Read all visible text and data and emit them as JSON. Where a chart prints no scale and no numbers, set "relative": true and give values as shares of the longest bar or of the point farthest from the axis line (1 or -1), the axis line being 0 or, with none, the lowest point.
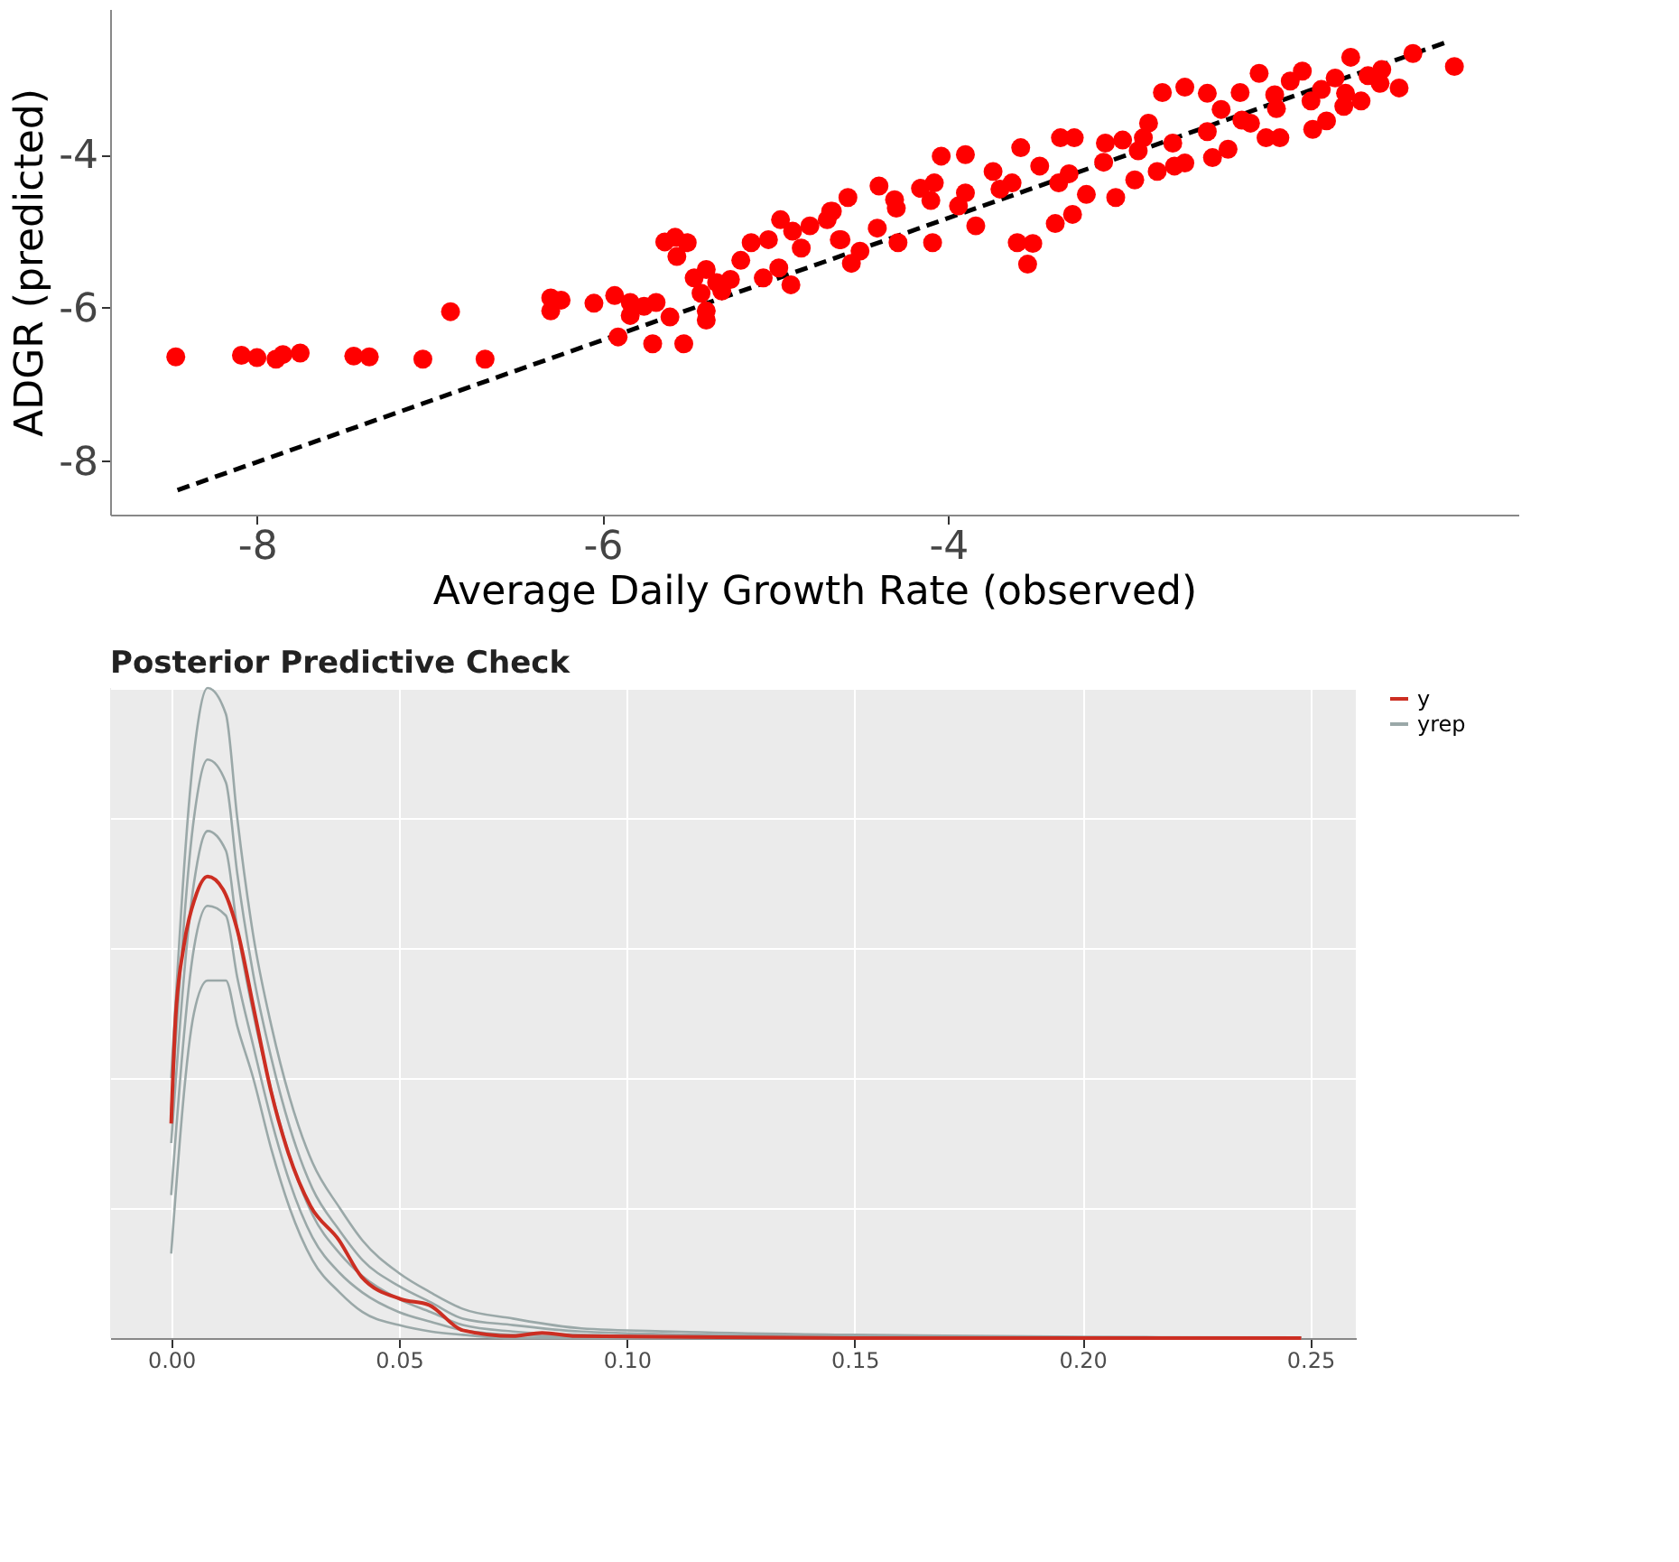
{
  "chart_data": [
    {
      "type": "scatter",
      "xlabel": "Average Daily Growth Rate (observed)",
      "ylabel": "ADGR (predicted)",
      "xlim": [
        -8.85,
        -0.7
      ],
      "ylim": [
        -8.7,
        -2.1
      ],
      "xticks": [
        -8,
        -6,
        -4
      ],
      "yticks": [
        -8,
        -6,
        -4
      ],
      "grid": false,
      "legend": false,
      "marker": "circle",
      "series": [
        {
          "color": "#ff0000",
          "x": [
            -8.47,
            -8.09,
            -8.0,
            -7.89,
            -7.85,
            -7.75,
            -7.44,
            -7.35,
            -7.04,
            -6.88,
            -6.68,
            -6.3,
            -6.24,
            -6.3,
            -6.05,
            -5.93,
            -5.84,
            -5.84,
            -5.76,
            -5.69,
            -5.61,
            -5.91,
            -5.71,
            -5.53,
            -5.64,
            -5.58,
            -5.51,
            -5.57,
            -5.47,
            -5.4,
            -5.34,
            -5.26,
            -5.43,
            -5.31,
            -5.4,
            -5.4,
            -5.2,
            -5.14,
            -5.04,
            -4.97,
            -5.07,
            -4.98,
            -4.91,
            -4.85,
            -4.8,
            -4.67,
            -4.63,
            -4.58,
            -4.68,
            -4.56,
            -4.62,
            -4.51,
            -4.4,
            -4.31,
            -4.41,
            -4.29,
            -4.16,
            -4.08,
            -4.09,
            -4.04,
            -3.9,
            -3.94,
            -3.84,
            -3.74,
            -3.63,
            -3.58,
            -3.6,
            -3.51,
            -3.54,
            -3.47,
            -3.38,
            -3.28,
            -3.35,
            -3.27,
            -3.36,
            -3.2,
            -3.09,
            -2.99,
            -3.03,
            -2.92,
            -2.87,
            -2.84,
            -2.79,
            -2.76,
            -2.63,
            -2.69,
            -2.63,
            -2.5,
            -2.47,
            -2.38,
            -2.42,
            -2.31,
            -2.25,
            -2.2,
            -2.16,
            -2.08,
            -2.11,
            -2.02,
            -1.95,
            -1.89,
            -1.84,
            -1.81,
            -1.76,
            -1.67,
            -1.71,
            -1.61,
            -1.57,
            -1.49,
            -1.5,
            -1.39,
            -1.31,
            -1.07,
            -4.3,
            -4.1,
            -3.9,
            -3.7,
            -3.3,
            -3.1,
            -2.9,
            -2.7,
            -2.5,
            -2.3,
            -2.1,
            -1.9,
            -1.7,
            -4.7,
            -4.9
          ],
          "values": [
            -6.64,
            -6.62,
            -6.65,
            -6.67,
            -6.61,
            -6.59,
            -6.63,
            -6.64,
            -6.67,
            -6.05,
            -6.67,
            -5.87,
            -5.9,
            -6.04,
            -5.94,
            -5.84,
            -5.93,
            -6.1,
            -5.98,
            -5.93,
            -6.12,
            -6.38,
            -6.47,
            -6.47,
            -5.14,
            -5.08,
            -5.15,
            -5.33,
            -5.61,
            -5.5,
            -5.67,
            -5.63,
            -5.81,
            -5.78,
            -6.04,
            -6.16,
            -5.38,
            -5.15,
            -5.11,
            -4.85,
            -5.61,
            -5.48,
            -5.7,
            -5.22,
            -4.93,
            -4.74,
            -5.11,
            -4.56,
            -4.74,
            -5.42,
            -5.11,
            -5.26,
            -4.41,
            -4.59,
            -4.96,
            -5.15,
            -4.44,
            -4.37,
            -5.15,
            -4.02,
            -4.0,
            -4.67,
            -4.93,
            -4.22,
            -4.37,
            -3.91,
            -5.15,
            -5.16,
            -5.43,
            -4.15,
            -4.9,
            -4.78,
            -3.78,
            -3.78,
            -4.37,
            -4.52,
            -3.85,
            -3.81,
            -4.56,
            -4.33,
            -3.78,
            -3.59,
            -4.22,
            -3.19,
            -3.12,
            -4.15,
            -4.11,
            -3.2,
            -4.04,
            -3.93,
            -3.41,
            -3.19,
            -3.59,
            -2.94,
            -3.78,
            -3.78,
            -3.22,
            -3.04,
            -2.91,
            -3.67,
            -3.15,
            -3.56,
            -3.0,
            -2.73,
            -3.37,
            -3.3,
            -2.97,
            -2.89,
            -3.07,
            -3.13,
            -2.68,
            -2.85,
            -4.7,
            -4.6,
            -4.5,
            -4.45,
            -4.25,
            -4.1,
            -3.95,
            -3.85,
            -3.7,
            -3.55,
            -3.4,
            -3.3,
            -3.2,
            -4.85,
            -5.0
          ]
        },
        {
          "type": "line",
          "color": "#000000",
          "line_style": "dashed",
          "marker": "none",
          "x": [
            -8.46,
            -1.1
          ],
          "values": [
            -8.38,
            -2.52
          ]
        }
      ]
    },
    {
      "type": "line",
      "title": "Posterior Predictive Check",
      "relative": true,
      "xlim": [
        -0.0134,
        0.26
      ],
      "xticks": [
        {
          "value": 0,
          "label": "0.00"
        },
        {
          "value": 0.05,
          "label": "0.05"
        },
        {
          "value": 0.1,
          "label": "0.10"
        },
        {
          "value": 0.15,
          "label": "0.15"
        },
        {
          "value": 0.2,
          "label": "0.20"
        },
        {
          "value": 0.25,
          "label": "0.25"
        }
      ],
      "grid": true,
      "legend": "right",
      "series": [
        {
          "name": "y",
          "color": "#cc2e22",
          "x": [
            0.0,
            0.0009,
            0.0027,
            0.0052,
            0.008,
            0.0114,
            0.0145,
            0.0182,
            0.0219,
            0.0257,
            0.0306,
            0.0368,
            0.0418,
            0.0504,
            0.0566,
            0.064,
            0.075,
            0.0814,
            0.0888,
            0.15,
            0.2,
            0.248
          ],
          "values": [
            0.33,
            0.485,
            0.6,
            0.676,
            0.71,
            0.69,
            0.628,
            0.504,
            0.38,
            0.285,
            0.203,
            0.151,
            0.094,
            0.06,
            0.051,
            0.012,
            0.003,
            0.008,
            0.003,
            0.0,
            0.0,
            0.0
          ]
        },
        {
          "name": "yrep",
          "color": "#9aa8a8",
          "x": [
            0.0,
            0.005,
            0.008,
            0.012,
            0.0145,
            0.018,
            0.022,
            0.026,
            0.031,
            0.037,
            0.042,
            0.05,
            0.057,
            0.064,
            0.075,
            0.09,
            0.11,
            0.15,
            0.2,
            0.248
          ],
          "values": [
            0.4,
            0.9,
            1.0,
            0.96,
            0.8,
            0.62,
            0.48,
            0.37,
            0.27,
            0.2,
            0.15,
            0.1,
            0.07,
            0.045,
            0.03,
            0.015,
            0.01,
            0.005,
            0.002,
            0.001
          ]
        },
        {
          "color": "#9aa8a8",
          "x": [
            0.0,
            0.005,
            0.008,
            0.012,
            0.0145,
            0.018,
            0.022,
            0.026,
            0.031,
            0.037,
            0.042,
            0.05,
            0.057,
            0.064,
            0.075,
            0.09,
            0.11,
            0.15,
            0.2,
            0.248
          ],
          "values": [
            0.35,
            0.8,
            0.89,
            0.855,
            0.715,
            0.56,
            0.43,
            0.325,
            0.23,
            0.165,
            0.12,
            0.08,
            0.055,
            0.03,
            0.02,
            0.01,
            0.006,
            0.003,
            0.001,
            0.001
          ]
        },
        {
          "color": "#9aa8a8",
          "x": [
            0.0,
            0.005,
            0.008,
            0.012,
            0.0145,
            0.018,
            0.022,
            0.026,
            0.031,
            0.037,
            0.042,
            0.05,
            0.057,
            0.064,
            0.075,
            0.09,
            0.11,
            0.15,
            0.2,
            0.248
          ],
          "values": [
            0.3,
            0.7,
            0.78,
            0.75,
            0.63,
            0.5,
            0.38,
            0.28,
            0.19,
            0.13,
            0.095,
            0.06,
            0.04,
            0.02,
            0.01,
            0.005,
            0.003,
            0.001,
            0.0,
            0.0
          ]
        },
        {
          "color": "#9aa8a8",
          "x": [
            0.0,
            0.005,
            0.008,
            0.012,
            0.0145,
            0.018,
            0.022,
            0.026,
            0.031,
            0.037,
            0.042,
            0.05,
            0.057,
            0.064,
            0.075,
            0.09,
            0.11,
            0.15,
            0.2,
            0.248
          ],
          "values": [
            0.22,
            0.6,
            0.665,
            0.65,
            0.555,
            0.45,
            0.335,
            0.24,
            0.155,
            0.1,
            0.07,
            0.04,
            0.025,
            0.012,
            0.005,
            0.002,
            0.001,
            0.0,
            0.0,
            0.0
          ]
        },
        {
          "color": "#9aa8a8",
          "x": [
            0.0,
            0.005,
            0.008,
            0.012,
            0.0145,
            0.018,
            0.022,
            0.026,
            0.031,
            0.037,
            0.042,
            0.05,
            0.057,
            0.064,
            0.075,
            0.09,
            0.11,
            0.15,
            0.2,
            0.248
          ],
          "values": [
            0.13,
            0.5,
            0.55,
            0.55,
            0.48,
            0.4,
            0.29,
            0.2,
            0.12,
            0.07,
            0.04,
            0.02,
            0.01,
            0.005,
            0.0,
            0.0,
            0.0,
            0.0,
            0.0,
            0.0
          ]
        }
      ]
    }
  ]
}
